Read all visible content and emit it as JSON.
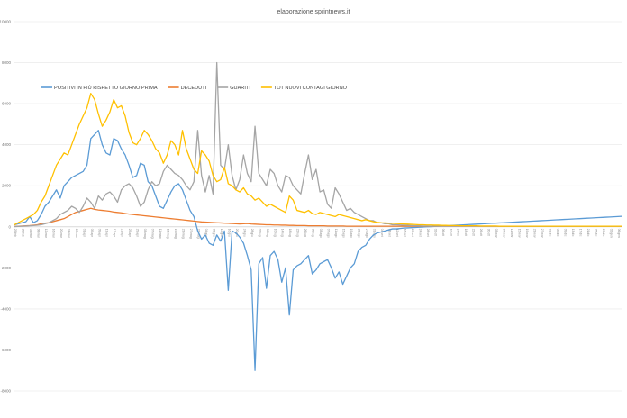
{
  "chart_data": {
    "type": "line",
    "title": "elaborazione sprintnews.it",
    "xlabel": "",
    "ylabel": "",
    "ylim": [
      -8000,
      10000
    ],
    "yticks": [
      -8000,
      -6000,
      -4000,
      -2000,
      0,
      2000,
      4000,
      6000,
      8000,
      10000
    ],
    "grid": true,
    "legend_position": "top-left",
    "x": [
      "25-feb",
      "27-feb",
      "29-feb",
      "02-mar",
      "04-mar",
      "06-mar",
      "08-mar",
      "10-mar",
      "12-mar",
      "14-mar",
      "16-mar",
      "18-mar",
      "20-mar",
      "22-mar",
      "24-mar",
      "26-mar",
      "28-mar",
      "30-mar",
      "01-apr",
      "03-apr",
      "05-apr",
      "07-apr",
      "09-apr",
      "11-apr",
      "13-apr",
      "15-apr",
      "17-apr",
      "19-apr",
      "21-apr",
      "23-apr",
      "25-apr",
      "27-apr",
      "29-apr",
      "01-mag",
      "03-mag",
      "05-mag",
      "07-mag",
      "09-mag",
      "11-mag",
      "13-mag",
      "15-mag",
      "17-mag",
      "19-mag",
      "21-mag",
      "23-mag",
      "25-mag",
      "27-mag",
      "29-mag",
      "31-mag",
      "02-giu",
      "04-giu",
      "06-giu",
      "08-giu",
      "10-giu",
      "12-giu",
      "14-giu",
      "16-giu",
      "18-giu",
      "20-giu",
      "22-giu",
      "24-giu",
      "26-giu",
      "28-giu",
      "30-giu",
      "02-lug",
      "04-lug",
      "06-lug",
      "08-lug",
      "10-lug",
      "12-lug",
      "14-lug",
      "16-lug",
      "18-lug",
      "20-lug",
      "22-lug",
      "24-lug",
      "26-lug",
      "28-lug",
      "30-lug",
      "01-ago",
      "03-ago",
      "05-ago",
      "07-ago",
      "09-ago",
      "11-ago",
      "13-ago",
      "15-ago",
      "17-ago",
      "19-ago",
      "21-ago",
      "23-ago",
      "25-ago",
      "27-ago",
      "29-ago",
      "31-ago",
      "02-set",
      "04-set",
      "06-set",
      "08-set",
      "10-set",
      "12-set",
      "14-set",
      "16-set",
      "18-set",
      "20-set",
      "22-set",
      "24-set",
      "26-set",
      "28-set",
      "30-set",
      "02-ott",
      "04-ott",
      "06-ott",
      "08-ott",
      "10-ott",
      "12-ott",
      "14-ott",
      "16-ott",
      "18-ott",
      "20-ott",
      "22-ott",
      "24-ott",
      "26-ott",
      "28-ott",
      "30-ott",
      "01-nov",
      "03-nov",
      "05-nov",
      "07-nov",
      "09-nov",
      "11-nov",
      "13-nov",
      "15-nov",
      "17-nov",
      "19-nov",
      "21-nov",
      "23-nov",
      "25-nov",
      "27-nov",
      "29-nov",
      "01-dic",
      "03-dic",
      "05-dic",
      "07-dic",
      "09-dic",
      "11-dic",
      "13-dic",
      "15-dic",
      "17-dic",
      "19-dic",
      "21-dic",
      "23-dic",
      "25-dic",
      "27-dic",
      "29-dic",
      "31-dic",
      "02-gen",
      "04-gen",
      "06-gen",
      "08-gen"
    ],
    "series": [
      {
        "name": "POSITIVI IN PIÙ RISPETTO GIORNO PRIMA",
        "color": "#5b9bd5",
        "values": [
          100,
          150,
          200,
          250,
          500,
          200,
          300,
          600,
          1000,
          1200,
          1500,
          1800,
          1400,
          2000,
          2200,
          2400,
          2500,
          2600,
          2700,
          3000,
          4300,
          4500,
          4700,
          4000,
          3600,
          3500,
          4300,
          4200,
          3800,
          3500,
          3000,
          2400,
          2500,
          3100,
          3000,
          2200,
          2000,
          1500,
          1000,
          900,
          1300,
          1700,
          2000,
          2100,
          1800,
          1300,
          800,
          500,
          -200,
          -600,
          -400,
          -800,
          -900,
          -400,
          -700,
          -200,
          -3100,
          -200,
          -300,
          -500,
          -800,
          -1400,
          -2100,
          -7000,
          -1800,
          -1500,
          -3000,
          -1400,
          -1200,
          -1600,
          -2700,
          -2000,
          -4300,
          -2100,
          -1900,
          -1800,
          -1600,
          -1400,
          -2300,
          -2100,
          -1800,
          -1700,
          -1600,
          -2000,
          -2500,
          -2200,
          -2800,
          -2400,
          -2000,
          -1800,
          -1200,
          -1000,
          -900,
          -600,
          -400,
          -300,
          -250,
          -200,
          -150,
          -100,
          -100,
          -80,
          -60,
          -50,
          -40,
          -30,
          -20,
          -10,
          0,
          10,
          20,
          30,
          40,
          50,
          60,
          70,
          80,
          90,
          100,
          110,
          120,
          130,
          140,
          150,
          160,
          170,
          180,
          190,
          200,
          210,
          220,
          230,
          240,
          250,
          260,
          270,
          280,
          290,
          300,
          310,
          320,
          330,
          340,
          350,
          360,
          370,
          380,
          390,
          400,
          410,
          420,
          430,
          440,
          450,
          460,
          470,
          480,
          490,
          500,
          510
        ]
      },
      {
        "name": "DECEDUTI",
        "color": "#ed7d31",
        "values": [
          20,
          30,
          40,
          50,
          60,
          80,
          100,
          150,
          180,
          200,
          250,
          300,
          350,
          400,
          500,
          600,
          700,
          750,
          800,
          850,
          900,
          850,
          820,
          800,
          780,
          760,
          720,
          700,
          680,
          650,
          620,
          600,
          580,
          560,
          540,
          520,
          500,
          480,
          460,
          440,
          420,
          400,
          380,
          360,
          340,
          320,
          300,
          280,
          260,
          240,
          230,
          220,
          210,
          200,
          190,
          180,
          170,
          160,
          150,
          140,
          150,
          160,
          140,
          130,
          120,
          110,
          100,
          100,
          90,
          90,
          80,
          80,
          70,
          70,
          60,
          60,
          60,
          50,
          50,
          50,
          50,
          50,
          40,
          40,
          40,
          40,
          40,
          30,
          30,
          30,
          30,
          30,
          30,
          30,
          30,
          30,
          30,
          30,
          30,
          30,
          30,
          30,
          30,
          30,
          30,
          30,
          30,
          30,
          30,
          30,
          30,
          30,
          30,
          30,
          30,
          30,
          30,
          30,
          30,
          30,
          30,
          30,
          30,
          30,
          30,
          30,
          30,
          30,
          30,
          30,
          30,
          30,
          30,
          30,
          30,
          30,
          30,
          30,
          30,
          30,
          30,
          30,
          30,
          30,
          30,
          30,
          30,
          30,
          30,
          30,
          30,
          30,
          30,
          30,
          30,
          30,
          30,
          30,
          30,
          30
        ]
      },
      {
        "name": "GUARITI",
        "color": "#a5a5a5",
        "values": [
          10,
          20,
          30,
          40,
          50,
          60,
          80,
          100,
          150,
          200,
          300,
          400,
          600,
          700,
          800,
          1000,
          900,
          700,
          1000,
          1400,
          1200,
          900,
          1500,
          1300,
          1600,
          1700,
          1500,
          1200,
          1800,
          2000,
          2100,
          1900,
          1500,
          1000,
          1200,
          1800,
          2200,
          2000,
          2100,
          2700,
          3000,
          2800,
          2600,
          2500,
          2300,
          2000,
          1800,
          2200,
          4700,
          2500,
          1700,
          2500,
          1600,
          8000,
          3000,
          2800,
          4000,
          2500,
          1800,
          2300,
          3500,
          2600,
          2200,
          4900,
          2600,
          2300,
          2000,
          2800,
          2600,
          2000,
          1700,
          2500,
          2400,
          2000,
          1800,
          1600,
          2600,
          3500,
          2300,
          2800,
          1700,
          1800,
          1100,
          900,
          1900,
          1600,
          1200,
          800,
          900,
          700,
          600,
          500,
          400,
          300,
          300,
          200,
          200,
          150,
          150,
          100,
          100,
          90,
          80,
          70,
          60,
          50,
          50,
          40,
          40,
          30,
          30,
          30,
          30,
          30,
          30,
          30,
          30,
          30,
          30,
          30,
          30,
          30,
          30,
          30,
          30,
          30,
          30,
          30,
          30,
          30,
          30,
          30,
          30,
          30,
          30,
          30,
          30,
          30,
          30,
          30,
          30,
          30,
          30,
          30,
          30,
          30,
          30,
          30,
          30,
          30,
          30,
          30,
          30,
          30,
          30,
          30,
          30,
          30,
          30,
          30
        ]
      },
      {
        "name": "TOT NUOVI CONTAGI GIORNO",
        "color": "#ffc000",
        "values": [
          100,
          200,
          300,
          400,
          500,
          600,
          800,
          1200,
          1500,
          2000,
          2500,
          3000,
          3300,
          3600,
          3500,
          4000,
          4500,
          5000,
          5400,
          5800,
          6500,
          6200,
          5500,
          4900,
          5200,
          5600,
          6200,
          5800,
          5900,
          5400,
          4600,
          4100,
          4000,
          4300,
          4700,
          4500,
          4200,
          3800,
          3600,
          3100,
          3500,
          4200,
          4000,
          3500,
          4700,
          3800,
          3300,
          2800,
          2600,
          3700,
          3500,
          3200,
          2500,
          2200,
          2300,
          2900,
          2100,
          2000,
          1800,
          1700,
          1900,
          1600,
          1500,
          1300,
          1400,
          1200,
          1000,
          1100,
          1000,
          900,
          800,
          700,
          1500,
          1300,
          800,
          750,
          700,
          800,
          650,
          600,
          700,
          650,
          600,
          550,
          500,
          600,
          550,
          500,
          450,
          400,
          350,
          300,
          350,
          300,
          250,
          220,
          200,
          190,
          180,
          170,
          160,
          150,
          140,
          130,
          120,
          110,
          100,
          100,
          90,
          90,
          80,
          80,
          70,
          70,
          60,
          60,
          60,
          50,
          50,
          50,
          50,
          50,
          40,
          40,
          40,
          40,
          40,
          30,
          30,
          30,
          30,
          30,
          30,
          30,
          30,
          30,
          30,
          30,
          30,
          30,
          30,
          30,
          30,
          30,
          30,
          30,
          30,
          30,
          30,
          30,
          30,
          30,
          30,
          30,
          30,
          30,
          30,
          30,
          30,
          30
        ]
      }
    ]
  }
}
